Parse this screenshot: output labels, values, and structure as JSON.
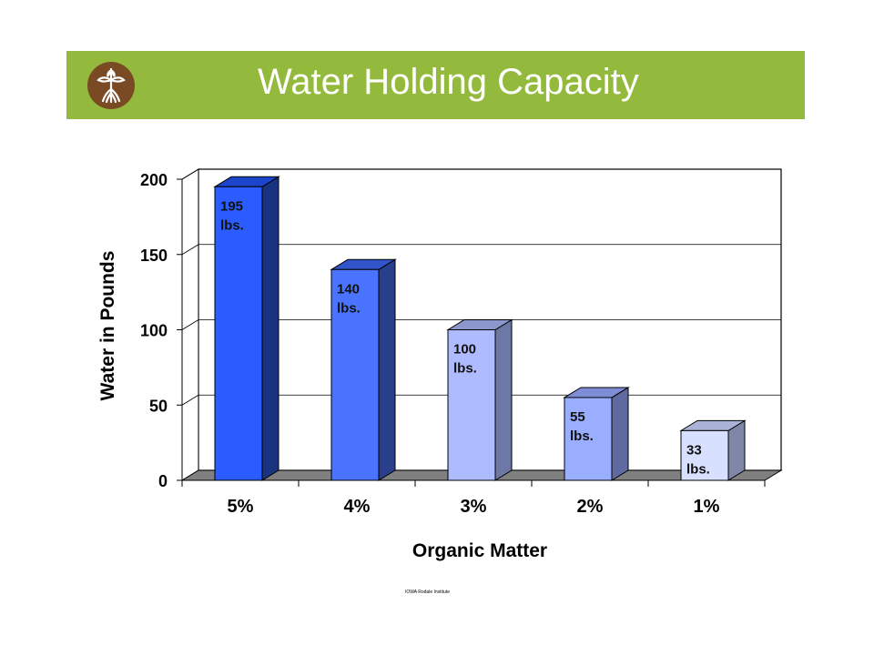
{
  "header": {
    "title": "Water Holding Capacity",
    "logo_icon": "sprout-roots-icon",
    "colors": {
      "banner": "#93ba3c",
      "logo_circle": "#7a4a25",
      "title_text": "#ffffff"
    }
  },
  "footnote": "IOWA Rodale Institute",
  "chart_data": {
    "type": "bar",
    "style": "3d",
    "categories": [
      "5%",
      "4%",
      "3%",
      "2%",
      "1%"
    ],
    "values": [
      195,
      140,
      100,
      55,
      33
    ],
    "data_labels": [
      [
        "195",
        "lbs."
      ],
      [
        "140",
        "lbs."
      ],
      [
        "100",
        "lbs."
      ],
      [
        "55",
        "lbs."
      ],
      [
        "33",
        "lbs."
      ]
    ],
    "bar_colors": [
      {
        "front": "#2a5cff",
        "top": "#1d45cc",
        "side": "#1a3380"
      },
      {
        "front": "#4a74ff",
        "top": "#3355cc",
        "side": "#2a3f8c"
      },
      {
        "front": "#aebcff",
        "top": "#8c98cc",
        "side": "#6e78a6"
      },
      {
        "front": "#9aaeff",
        "top": "#7e8ed6",
        "side": "#5f6aa0"
      },
      {
        "front": "#d7e0ff",
        "top": "#aab3d6",
        "side": "#7f87a8"
      }
    ],
    "title": "",
    "xlabel": "Organic Matter",
    "ylabel": "Water in Pounds",
    "ylim": [
      0,
      200
    ],
    "yticks": [
      0,
      50,
      100,
      150,
      200
    ],
    "grid": true,
    "legend": "none"
  }
}
